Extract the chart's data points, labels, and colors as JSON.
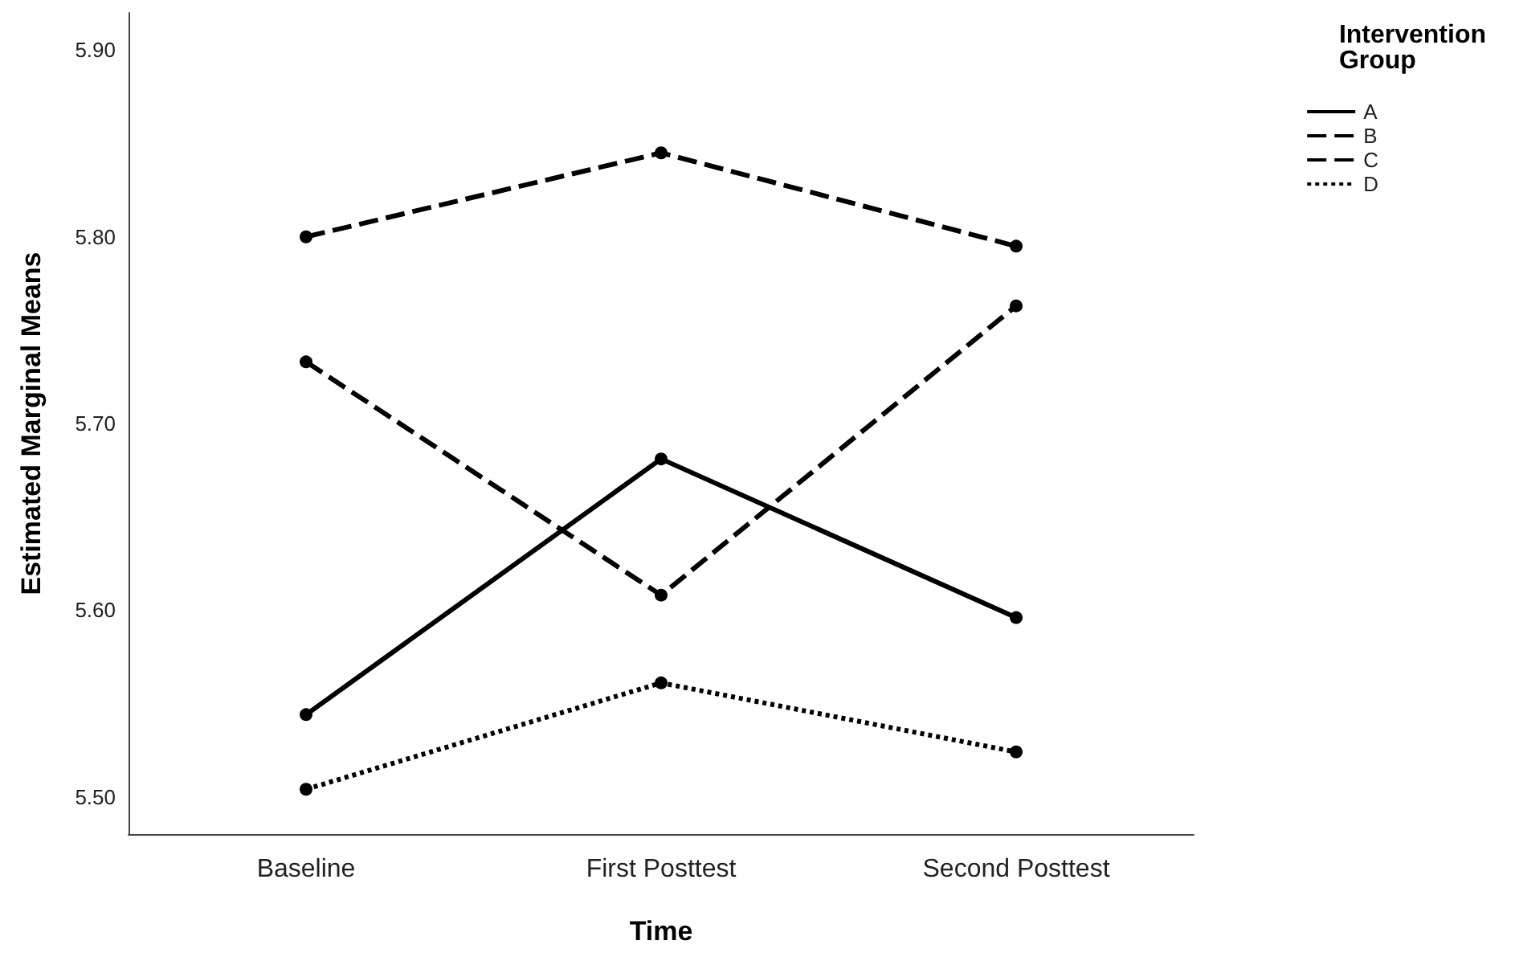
{
  "chart_data": {
    "type": "line",
    "xlabel": "Time",
    "ylabel": "Estimated Marginal Means",
    "legend_title": "Intervention Group",
    "categories": [
      "Baseline",
      "First Posttest",
      "Second Posttest"
    ],
    "series": [
      {
        "name": "A",
        "color": "#000000",
        "line_style": "solid",
        "values": [
          5.544,
          5.681,
          5.596
        ]
      },
      {
        "name": "B",
        "color": "#000000",
        "line_style": "dashed",
        "values": [
          5.8,
          5.845,
          5.795
        ]
      },
      {
        "name": "C",
        "color": "#000000",
        "line_style": "dashed",
        "values": [
          5.733,
          5.608,
          5.763
        ]
      },
      {
        "name": "D",
        "color": "#000000",
        "line_style": "dotted",
        "values": [
          5.504,
          5.561,
          5.524
        ]
      }
    ],
    "ylim": [
      5.48,
      5.92
    ],
    "yticks": [
      {
        "value": 5.5,
        "label": "5.50"
      },
      {
        "value": 5.6,
        "label": "5.60"
      },
      {
        "value": 5.7,
        "label": "5.70"
      },
      {
        "value": 5.8,
        "label": "5.80"
      },
      {
        "value": 5.9,
        "label": "5.90"
      }
    ],
    "grid": false,
    "legend": "top right",
    "marker": "circle"
  }
}
